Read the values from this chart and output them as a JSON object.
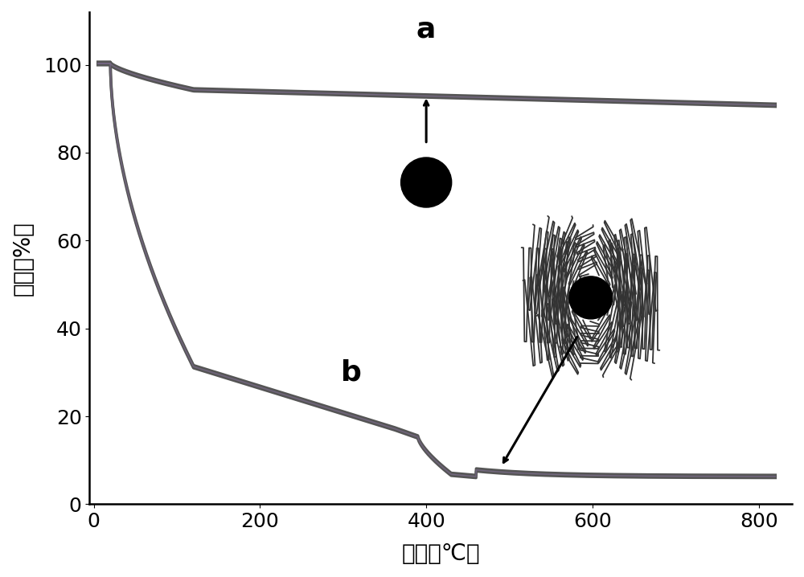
{
  "xlabel": "温度（℃）",
  "ylabel": "质量（%）",
  "xlim": [
    -5,
    840
  ],
  "ylim": [
    0,
    112
  ],
  "xticks": [
    0,
    200,
    400,
    600,
    800
  ],
  "yticks": [
    0,
    20,
    40,
    60,
    80,
    100
  ],
  "line_color": "#555555",
  "line_color2": "#7a6a8a",
  "line_width": 3.0,
  "background_color": "#ffffff",
  "label_a": "a",
  "label_b": "b",
  "label_fontsize": 26,
  "axis_fontsize": 20,
  "tick_fontsize": 18
}
